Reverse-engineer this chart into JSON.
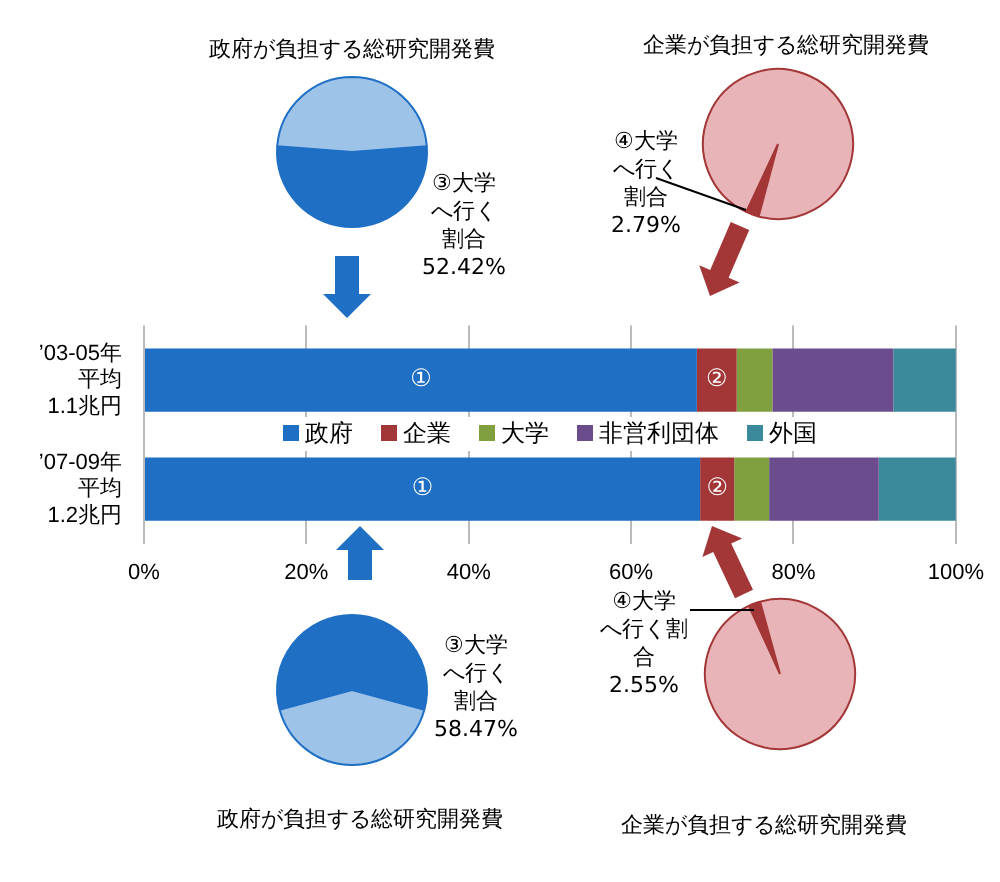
{
  "chart_data": [
    {
      "type": "bar",
      "orientation": "horizontal",
      "stacked": true,
      "categories": [
        "’03-05年平均1.1兆円",
        "’07-09年平均1.2兆円"
      ],
      "series": [
        {
          "name": "政府",
          "color": "#1f6fc5",
          "values": [
            68.1,
            68.5
          ],
          "value_labels": [
            "①",
            "①"
          ]
        },
        {
          "name": "企業",
          "color": "#a33636",
          "values": [
            4.9,
            4.2
          ],
          "value_labels": [
            "②",
            "②"
          ]
        },
        {
          "name": "大学",
          "color": "#80a040",
          "values": [
            4.4,
            4.3
          ]
        },
        {
          "name": "非営利団体",
          "color": "#6b4c8c",
          "values": [
            14.9,
            13.5
          ]
        },
        {
          "name": "外国",
          "color": "#3a8a9c",
          "values": [
            7.7,
            9.5
          ]
        }
      ],
      "xlim": [
        0,
        100
      ],
      "xticks": [
        {
          "value": 0,
          "label": "0%"
        },
        {
          "value": 20,
          "label": "20%"
        },
        {
          "value": 40,
          "label": "40%"
        },
        {
          "value": 60,
          "label": "60%"
        },
        {
          "value": 80,
          "label": "80%"
        },
        {
          "value": 100,
          "label": "100%"
        }
      ],
      "grid": "x",
      "legend": "center"
    },
    {
      "type": "pie",
      "title": "政府が負担する総研究開発費",
      "categories": [
        "③大学へ行く割合",
        null
      ],
      "values": [
        52.42,
        47.58
      ],
      "colors": [
        "#1f6fc5",
        "#9dc3e8"
      ],
      "value_labels": [
        "52.42%",
        null
      ]
    },
    {
      "type": "pie",
      "title": "企業が負担する総研究開発費",
      "categories": [
        "④大学へ行く割合",
        null
      ],
      "values": [
        2.79,
        97.21
      ],
      "colors": [
        "#a33636",
        "#e8b4b8"
      ],
      "value_labels": [
        "2.79%",
        null
      ]
    },
    {
      "type": "pie",
      "title": "政府が負担する総研究開発費",
      "categories": [
        "③大学へ行く割合",
        null
      ],
      "values": [
        58.47,
        41.53
      ],
      "colors": [
        "#1f6fc5",
        "#9dc3e8"
      ],
      "value_labels": [
        "58.47%",
        null
      ]
    },
    {
      "type": "pie",
      "title": "企業が負担する総研究開発費",
      "categories": [
        "④大学へ行く割合",
        null
      ],
      "values": [
        2.55,
        97.45
      ],
      "colors": [
        "#a33636",
        "#e8b4b8"
      ],
      "value_labels": [
        "2.55%",
        null
      ]
    }
  ]
}
